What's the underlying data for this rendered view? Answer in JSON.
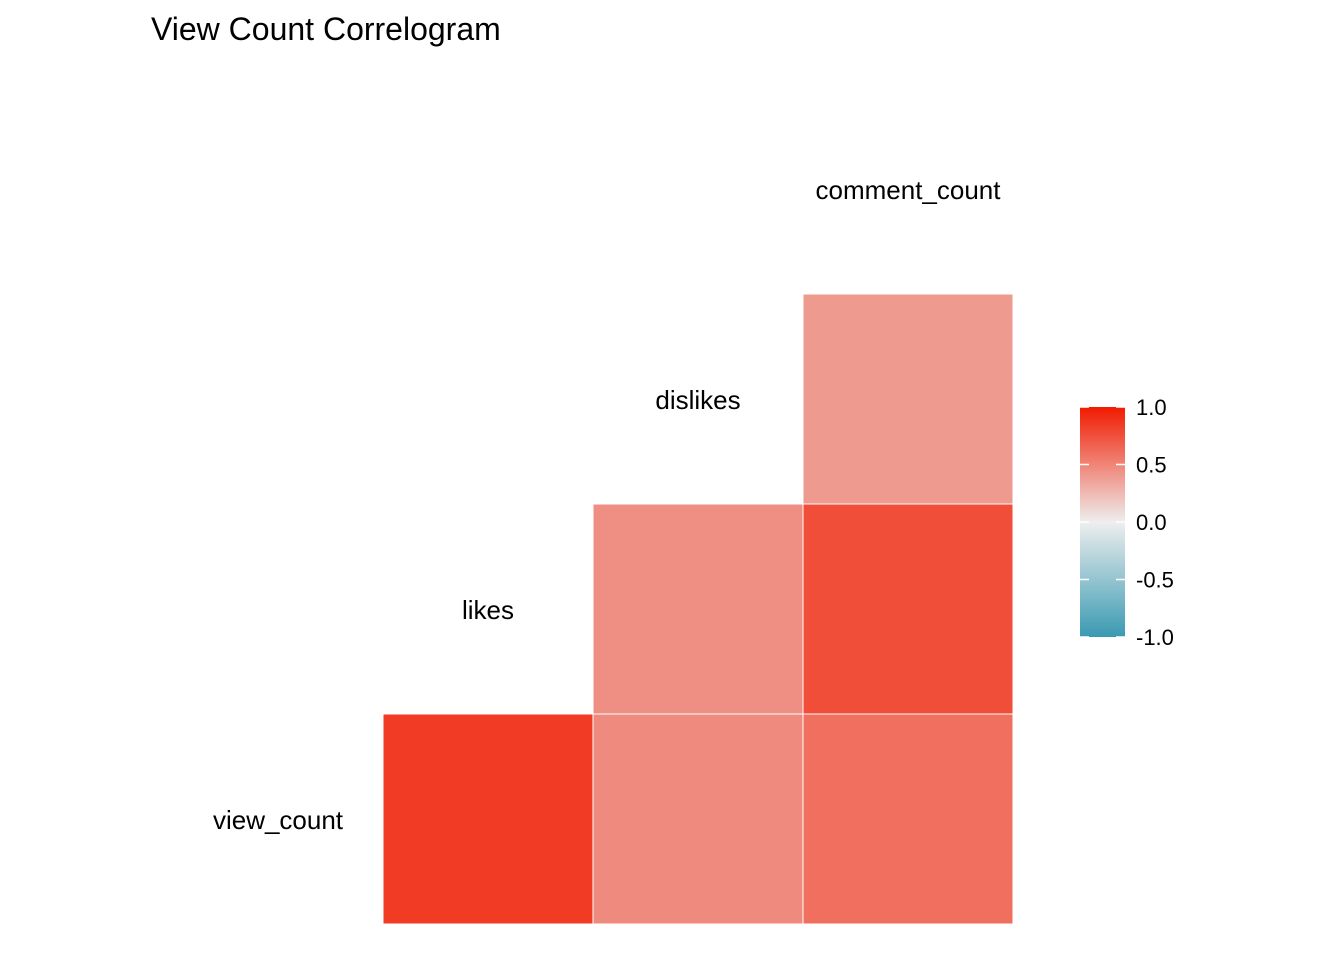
{
  "chart_data": {
    "type": "heatmap",
    "title": "View Count Correlogram",
    "variables": [
      "view_count",
      "likes",
      "dislikes",
      "comment_count"
    ],
    "cells": [
      {
        "row": "view_count",
        "col": "likes",
        "value": 0.85
      },
      {
        "row": "view_count",
        "col": "dislikes",
        "value": 0.47
      },
      {
        "row": "view_count",
        "col": "comment_count",
        "value": 0.6
      },
      {
        "row": "likes",
        "col": "dislikes",
        "value": 0.45
      },
      {
        "row": "likes",
        "col": "comment_count",
        "value": 0.76
      },
      {
        "row": "dislikes",
        "col": "comment_count",
        "value": 0.4
      }
    ],
    "legend": {
      "position": "right",
      "min": -1.0,
      "max": 1.0,
      "ticks": [
        {
          "value": 1.0,
          "label": "1.0"
        },
        {
          "value": 0.5,
          "label": "0.5"
        },
        {
          "value": 0.0,
          "label": "0.0"
        },
        {
          "value": -0.5,
          "label": "-0.5"
        },
        {
          "value": -1.0,
          "label": "-1.0"
        }
      ],
      "colors": {
        "low": "#3A9AB2",
        "mid": "#EEEEEE",
        "high": "#F11B00"
      }
    }
  }
}
